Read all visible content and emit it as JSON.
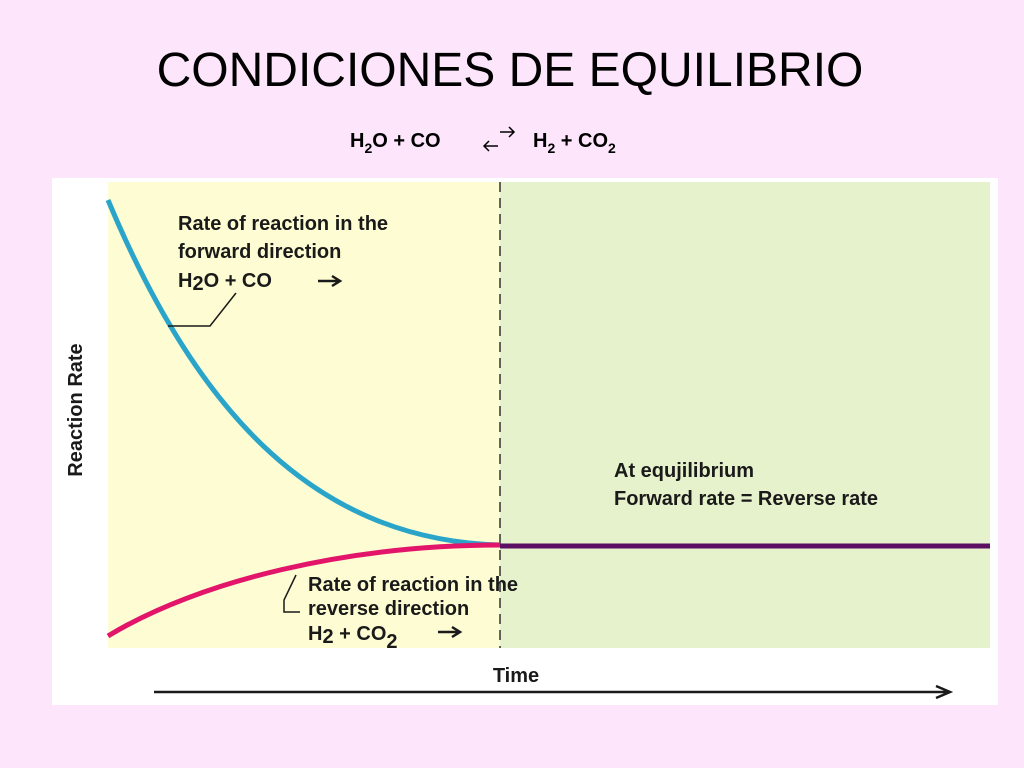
{
  "title": "CONDICIONES DE EQUILIBRIO",
  "equation": {
    "reactants": [
      "H",
      "2",
      "O + CO"
    ],
    "products": [
      "H",
      "2",
      " + CO",
      "2"
    ]
  },
  "diagram": {
    "y_axis_label": "Reaction Rate",
    "x_axis_label": "Time",
    "forward_label": {
      "lines": [
        "Rate of reaction in the",
        "forward direction"
      ],
      "formula": [
        "H",
        "2",
        "O + CO"
      ]
    },
    "reverse_label": {
      "lines": [
        "Rate of reaction in the",
        "reverse direction"
      ],
      "formula": [
        "H",
        "2",
        " + CO",
        "2"
      ]
    },
    "equilibrium_label": [
      "At equjilibrium",
      "Forward rate = Reverse rate"
    ]
  }
}
